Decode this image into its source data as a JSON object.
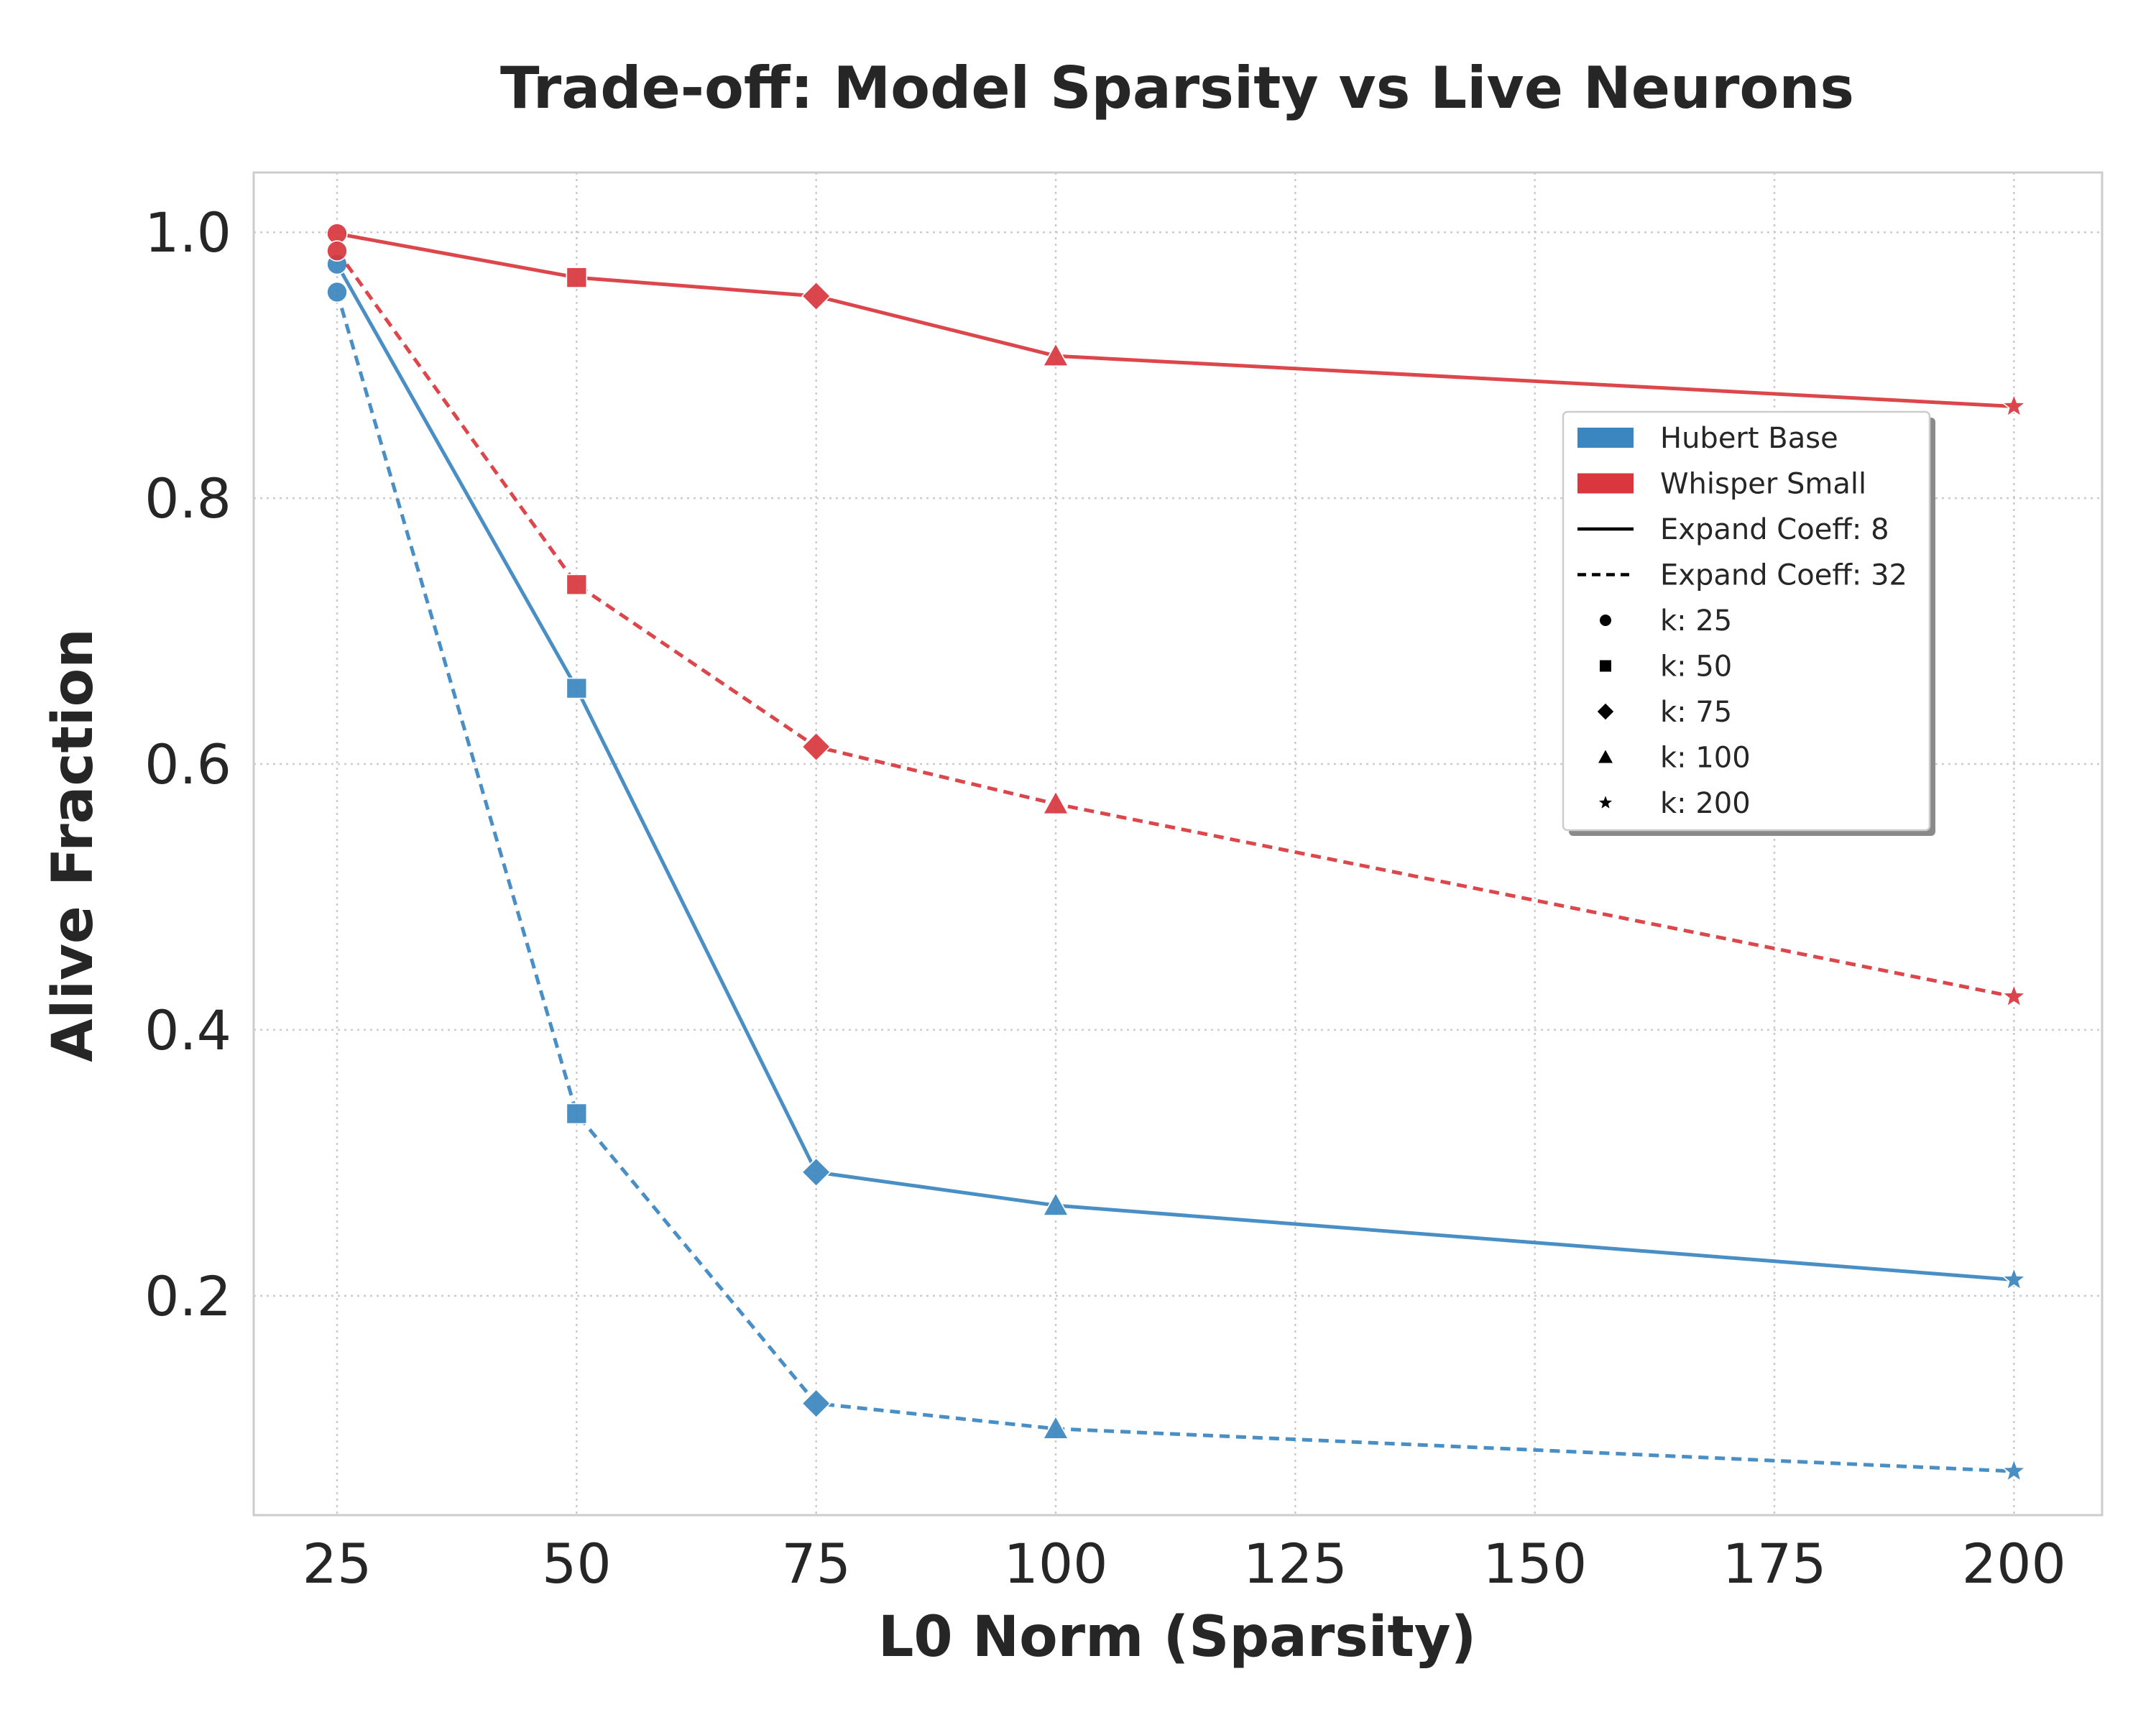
{
  "chart_data": {
    "type": "line",
    "title": "Trade-off: Model Sparsity vs Live Neurons",
    "xlabel": "L0 Norm (Sparsity)",
    "ylabel": "Alive Fraction",
    "xlim": [
      16.3,
      209.2
    ],
    "ylim": [
      0.035,
      1.045
    ],
    "xticks": [
      25,
      50,
      75,
      100,
      125,
      150,
      175,
      200
    ],
    "xtick_labels": [
      "25",
      "50",
      "75",
      "100",
      "125",
      "150",
      "175",
      "200"
    ],
    "yticks": [
      0.2,
      0.4,
      0.6,
      0.8,
      1.0
    ],
    "ytick_labels": [
      "0.2",
      "0.4",
      "0.6",
      "0.8",
      "1.0"
    ],
    "grid": true,
    "colors": {
      "hubert": "#3a86c0",
      "whisper": "#d9373d"
    },
    "series": [
      {
        "name": "Hubert Base",
        "expand_coeff": 8,
        "style": "solid",
        "color_key": "hubert",
        "x": [
          25,
          50,
          75,
          100,
          200
        ],
        "values": [
          0.976,
          0.657,
          0.293,
          0.268,
          0.212
        ],
        "markers": [
          "circle",
          "square",
          "diamond",
          "triangle",
          "star"
        ]
      },
      {
        "name": "Hubert Base",
        "expand_coeff": 32,
        "style": "dashed",
        "color_key": "hubert",
        "x": [
          25,
          50,
          75,
          100,
          200
        ],
        "values": [
          0.955,
          0.337,
          0.119,
          0.1,
          0.068
        ],
        "markers": [
          "circle",
          "square",
          "diamond",
          "triangle",
          "star"
        ]
      },
      {
        "name": "Whisper Small",
        "expand_coeff": 8,
        "style": "solid",
        "color_key": "whisper",
        "x": [
          25,
          50,
          75,
          100,
          200
        ],
        "values": [
          0.999,
          0.966,
          0.952,
          0.907,
          0.869
        ],
        "markers": [
          "circle",
          "square",
          "diamond",
          "triangle",
          "star"
        ]
      },
      {
        "name": "Whisper Small",
        "expand_coeff": 32,
        "style": "dashed",
        "color_key": "whisper",
        "x": [
          25,
          50,
          75,
          100,
          200
        ],
        "values": [
          0.986,
          0.735,
          0.613,
          0.57,
          0.425
        ],
        "markers": [
          "circle",
          "square",
          "diamond",
          "triangle",
          "star"
        ]
      }
    ],
    "legend": {
      "position": "right",
      "entries": [
        {
          "label": "Hubert Base",
          "kind": "patch",
          "color_key": "hubert"
        },
        {
          "label": "Whisper Small",
          "kind": "patch",
          "color_key": "whisper"
        },
        {
          "label": "Expand Coeff: 8",
          "kind": "line",
          "style": "solid"
        },
        {
          "label": "Expand Coeff: 32",
          "kind": "line",
          "style": "dashed"
        },
        {
          "label": "k: 25",
          "kind": "marker",
          "marker": "circle"
        },
        {
          "label": "k: 50",
          "kind": "marker",
          "marker": "square"
        },
        {
          "label": "k: 75",
          "kind": "marker",
          "marker": "diamond"
        },
        {
          "label": "k: 100",
          "kind": "marker",
          "marker": "triangle"
        },
        {
          "label": "k: 200",
          "kind": "marker",
          "marker": "star"
        }
      ]
    }
  }
}
